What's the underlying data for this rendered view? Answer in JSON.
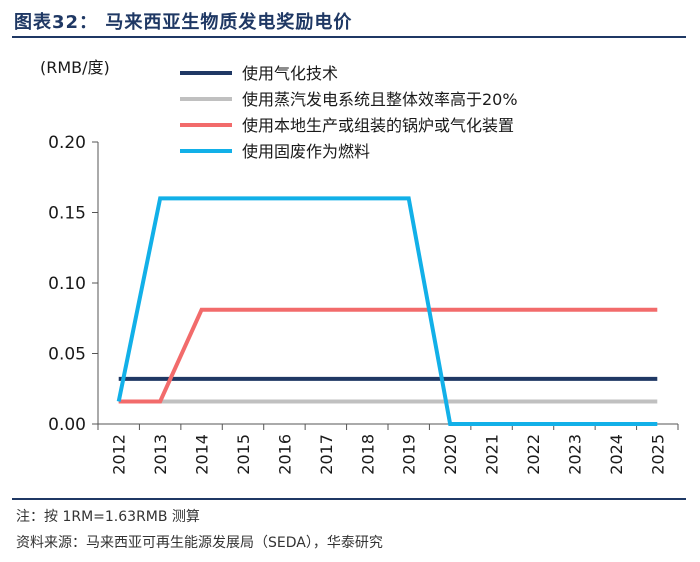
{
  "figure": {
    "title": "图表32：  马来西亚生物质发电奖励电价",
    "note": "注：按 1RM=1.63RMB 测算",
    "source": "资料来源：马来西亚可再生能源发展局（SEDA），华泰研究"
  },
  "chart_data": {
    "type": "line",
    "title": "",
    "xlabel": "",
    "ylabel": "(RMB/度)",
    "ylim": [
      0,
      0.2
    ],
    "y_ticks": [
      0.0,
      0.05,
      0.1,
      0.15,
      0.2
    ],
    "y_tick_labels": [
      "0.00",
      "0.05",
      "0.10",
      "0.15",
      "0.20"
    ],
    "categories": [
      "2012",
      "2013",
      "2014",
      "2015",
      "2016",
      "2017",
      "2018",
      "2019",
      "2020",
      "2021",
      "2022",
      "2023",
      "2024",
      "2025"
    ],
    "legend_position": "top-left",
    "grid": false,
    "series": [
      {
        "name": "使用气化技术",
        "color": "#1f3864",
        "x": [
          2012,
          2025
        ],
        "values": [
          0.032,
          0.032
        ]
      },
      {
        "name": "使用蒸汽发电系统且整体效率高于20%",
        "color": "#c0c0c0",
        "x": [
          2012,
          2025
        ],
        "values": [
          0.016,
          0.016
        ]
      },
      {
        "name": "使用本地生产或组装的锅炉或气化装置",
        "color": "#f26b6b",
        "x": [
          2012,
          2013,
          2014,
          2025
        ],
        "values": [
          0.016,
          0.016,
          0.081,
          0.081
        ]
      },
      {
        "name": "使用固废作为燃料",
        "color": "#12b0e8",
        "x": [
          2012,
          2013,
          2019,
          2020,
          2025
        ],
        "values": [
          0.016,
          0.16,
          0.16,
          0.0,
          0.0
        ]
      }
    ]
  }
}
